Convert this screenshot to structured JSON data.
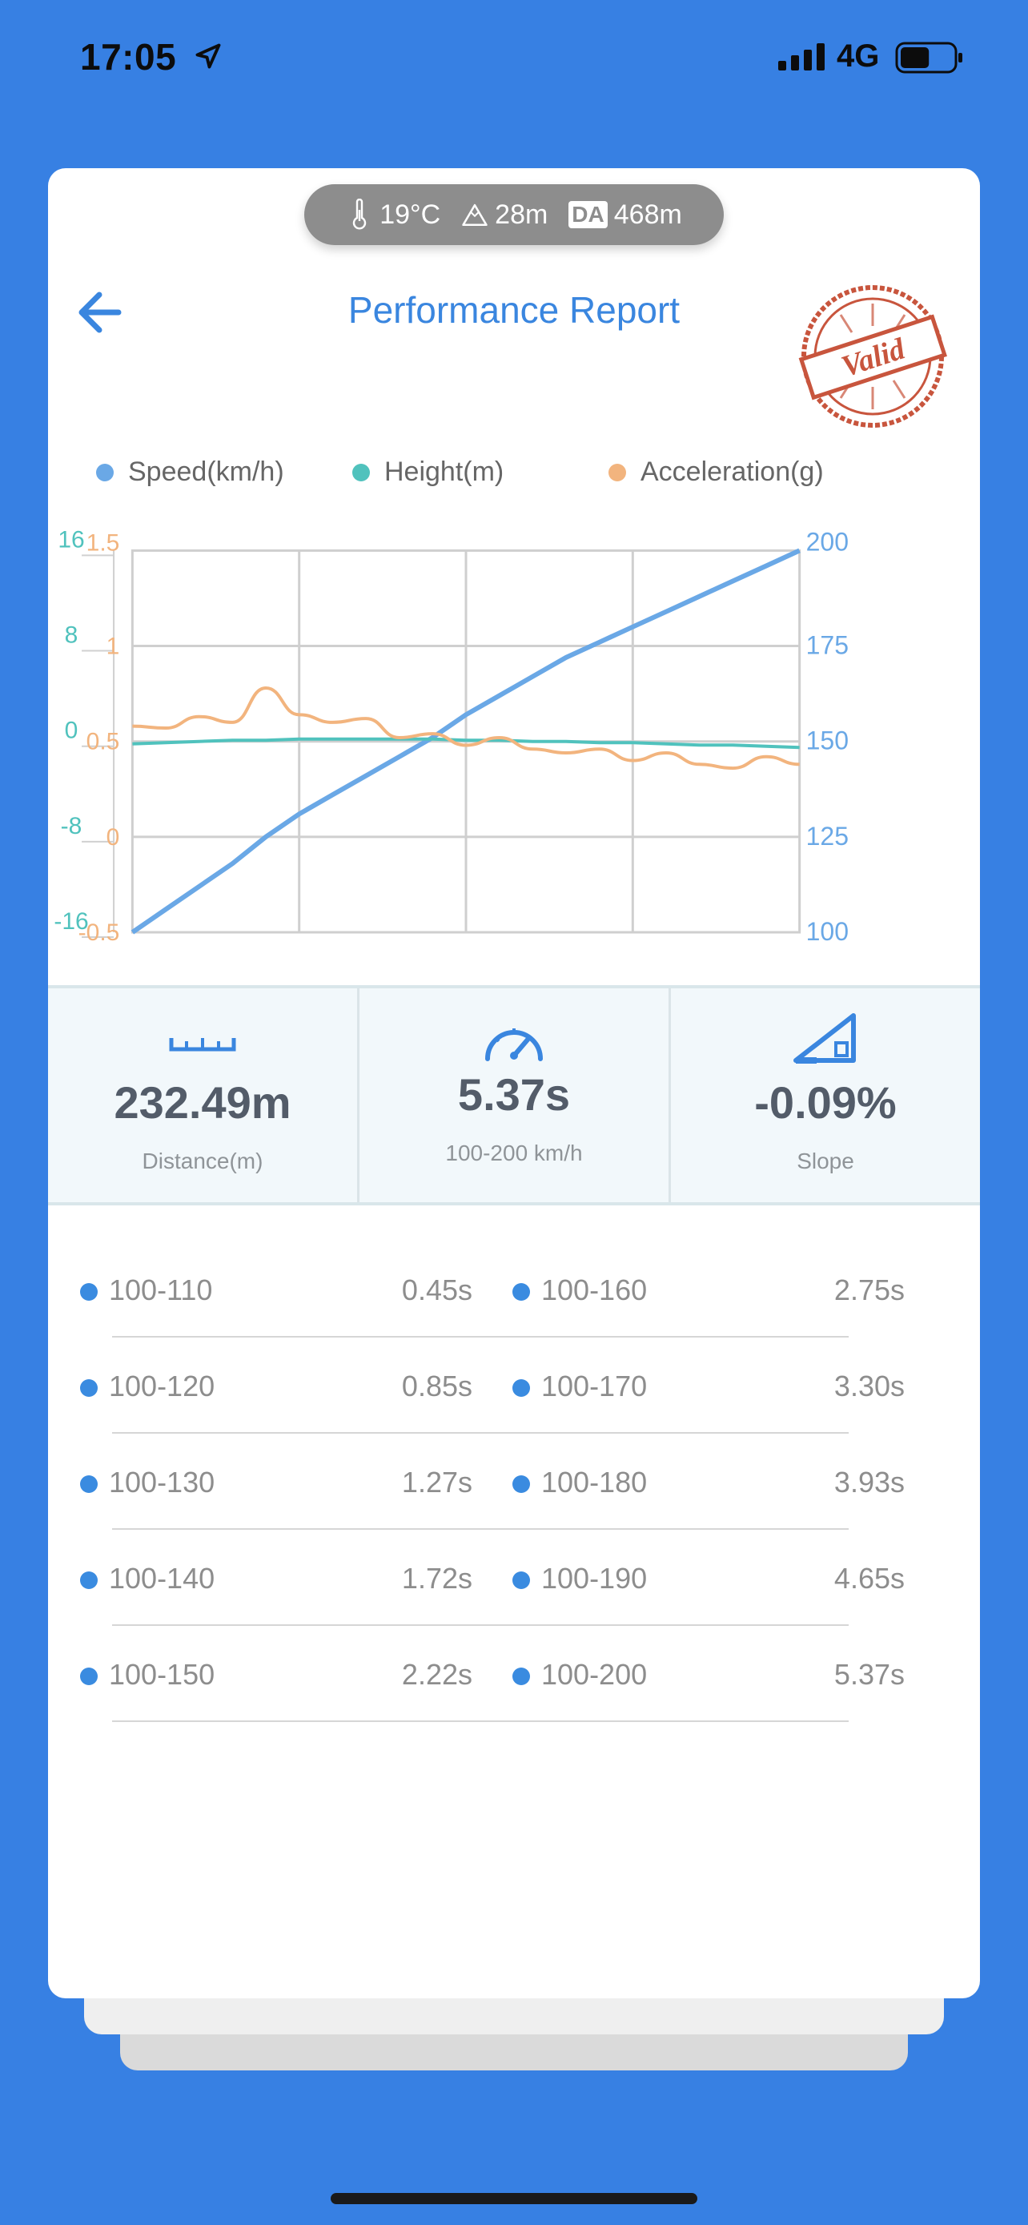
{
  "status_bar": {
    "time": "17:05",
    "network": "4G",
    "battery_level": 0.55
  },
  "environment": {
    "temperature": "19°C",
    "altitude": "28m",
    "da_label": "DA",
    "density_altitude": "468m"
  },
  "header": {
    "title": "Performance Report",
    "stamp_text": "Valid"
  },
  "colors": {
    "background": "#3780e3",
    "speed": "#6aa8e6",
    "height": "#50c2bd",
    "acceleration": "#f2b47e",
    "accent": "#3a86df",
    "stamp": "#c8553d"
  },
  "chart_data": {
    "type": "line",
    "legend": [
      "Speed(km/h)",
      "Height(m)",
      "Acceleration(g)"
    ],
    "legend_position": "top",
    "grid": true,
    "axes": {
      "height_axis": {
        "ticks": [
          "16",
          "8",
          "0",
          "-8",
          "-16"
        ],
        "range": [
          -16,
          16
        ]
      },
      "acceleration_axis": {
        "ticks": [
          "1.5",
          "1",
          "0.5",
          "0",
          "-0.5"
        ],
        "range": [
          -0.5,
          1.5
        ]
      },
      "speed_axis": {
        "ticks": [
          "200",
          "175",
          "150",
          "125",
          "100"
        ],
        "range": [
          100,
          200
        ]
      }
    },
    "x_fractions": [
      0,
      0.05,
      0.1,
      0.15,
      0.2,
      0.25,
      0.3,
      0.35,
      0.4,
      0.45,
      0.5,
      0.55,
      0.6,
      0.65,
      0.7,
      0.75,
      0.8,
      0.85,
      0.9,
      0.95,
      1.0
    ],
    "series": [
      {
        "name": "Speed(km/h)",
        "axis": "speed_axis",
        "values": [
          100,
          106,
          112,
          118,
          125,
          131,
          136,
          141,
          146,
          151,
          157,
          162,
          167,
          172,
          176,
          180,
          184,
          188,
          192,
          196,
          200
        ]
      },
      {
        "name": "Height(m)",
        "axis": "height_axis",
        "values": [
          -0.2,
          -0.1,
          0.0,
          0.1,
          0.1,
          0.2,
          0.2,
          0.2,
          0.2,
          0.2,
          0.1,
          0.1,
          0.0,
          0.0,
          -0.1,
          -0.1,
          -0.2,
          -0.3,
          -0.3,
          -0.4,
          -0.5
        ]
      },
      {
        "name": "Acceleration(g)",
        "axis": "acceleration_axis",
        "values": [
          0.58,
          0.57,
          0.63,
          0.6,
          0.78,
          0.64,
          0.6,
          0.62,
          0.52,
          0.54,
          0.48,
          0.52,
          0.46,
          0.44,
          0.46,
          0.4,
          0.44,
          0.38,
          0.36,
          0.42,
          0.38
        ]
      }
    ]
  },
  "stats": [
    {
      "icon": "ruler-icon",
      "value": "232.49m",
      "label": "Distance(m)"
    },
    {
      "icon": "speedometer-icon",
      "value": "5.37s",
      "label": "100-200 km/h"
    },
    {
      "icon": "slope-icon",
      "value": "-0.09%",
      "label": "Slope"
    }
  ],
  "splits": [
    {
      "left": {
        "name": "100-110",
        "time": "0.45s"
      },
      "right": {
        "name": "100-160",
        "time": "2.75s"
      }
    },
    {
      "left": {
        "name": "100-120",
        "time": "0.85s"
      },
      "right": {
        "name": "100-170",
        "time": "3.30s"
      }
    },
    {
      "left": {
        "name": "100-130",
        "time": "1.27s"
      },
      "right": {
        "name": "100-180",
        "time": "3.93s"
      }
    },
    {
      "left": {
        "name": "100-140",
        "time": "1.72s"
      },
      "right": {
        "name": "100-190",
        "time": "4.65s"
      }
    },
    {
      "left": {
        "name": "100-150",
        "time": "2.22s"
      },
      "right": {
        "name": "100-200",
        "time": "5.37s"
      }
    }
  ]
}
